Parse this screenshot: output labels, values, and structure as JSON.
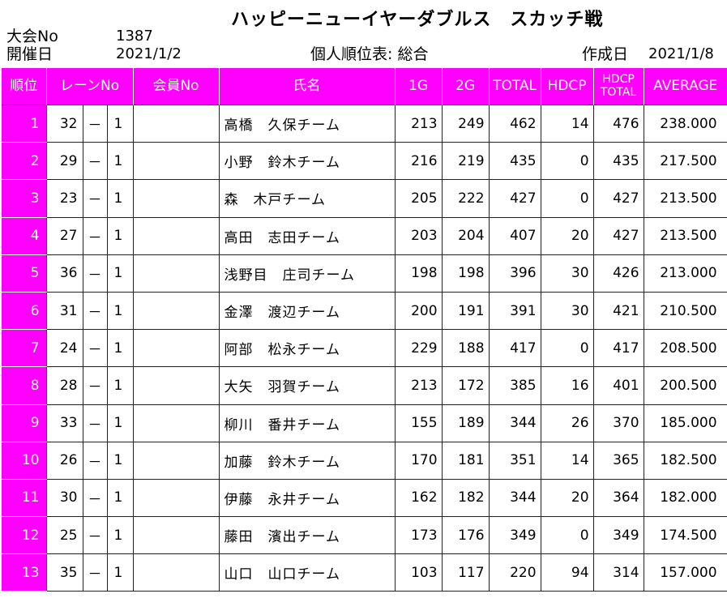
{
  "header": {
    "tournament_label": "大会No",
    "tournament_no": "1387",
    "date_label": "開催日",
    "date": "2021/1/2",
    "title": "ハッピーニューイヤーダブルス　スカッチ戦",
    "report_label": "個人順位表: 総合",
    "created_label": "作成日",
    "created_date": "2021/1/8"
  },
  "columns": {
    "rank": "順位",
    "lane": "レーンNo",
    "member": "会員No",
    "name": "氏名",
    "g1": "1G",
    "g2": "2G",
    "total": "TOTAL",
    "hdcp": "HDCP",
    "hdcp_total_1": "HDCP",
    "hdcp_total_2": "TOTAL",
    "average": "AVERAGE"
  },
  "rows": [
    {
      "rank": "1",
      "lane": "32",
      "dash": "－",
      "sub": "1",
      "member": "",
      "name": "高橋　久保チーム",
      "g1": "213",
      "g2": "249",
      "total": "462",
      "hdcp": "14",
      "hdcp_total": "476",
      "avg": "238.000"
    },
    {
      "rank": "2",
      "lane": "29",
      "dash": "－",
      "sub": "1",
      "member": "",
      "name": "小野　鈴木チーム",
      "g1": "216",
      "g2": "219",
      "total": "435",
      "hdcp": "0",
      "hdcp_total": "435",
      "avg": "217.500"
    },
    {
      "rank": "3",
      "lane": "23",
      "dash": "－",
      "sub": "1",
      "member": "",
      "name": "森　木戸チーム",
      "g1": "205",
      "g2": "222",
      "total": "427",
      "hdcp": "0",
      "hdcp_total": "427",
      "avg": "213.500"
    },
    {
      "rank": "4",
      "lane": "27",
      "dash": "－",
      "sub": "1",
      "member": "",
      "name": "高田　志田チーム",
      "g1": "203",
      "g2": "204",
      "total": "407",
      "hdcp": "20",
      "hdcp_total": "427",
      "avg": "213.500"
    },
    {
      "rank": "5",
      "lane": "36",
      "dash": "－",
      "sub": "1",
      "member": "",
      "name": "浅野目　庄司チーム",
      "g1": "198",
      "g2": "198",
      "total": "396",
      "hdcp": "30",
      "hdcp_total": "426",
      "avg": "213.000"
    },
    {
      "rank": "6",
      "lane": "31",
      "dash": "－",
      "sub": "1",
      "member": "",
      "name": "金澤　渡辺チーム",
      "g1": "200",
      "g2": "191",
      "total": "391",
      "hdcp": "30",
      "hdcp_total": "421",
      "avg": "210.500"
    },
    {
      "rank": "7",
      "lane": "24",
      "dash": "－",
      "sub": "1",
      "member": "",
      "name": "阿部　松永チーム",
      "g1": "229",
      "g2": "188",
      "total": "417",
      "hdcp": "0",
      "hdcp_total": "417",
      "avg": "208.500"
    },
    {
      "rank": "8",
      "lane": "28",
      "dash": "－",
      "sub": "1",
      "member": "",
      "name": "大矢　羽賀チーム",
      "g1": "213",
      "g2": "172",
      "total": "385",
      "hdcp": "16",
      "hdcp_total": "401",
      "avg": "200.500"
    },
    {
      "rank": "9",
      "lane": "33",
      "dash": "－",
      "sub": "1",
      "member": "",
      "name": "柳川　番井チーム",
      "g1": "155",
      "g2": "189",
      "total": "344",
      "hdcp": "26",
      "hdcp_total": "370",
      "avg": "185.000"
    },
    {
      "rank": "10",
      "lane": "26",
      "dash": "－",
      "sub": "1",
      "member": "",
      "name": "加藤　鈴木チーム",
      "g1": "170",
      "g2": "181",
      "total": "351",
      "hdcp": "14",
      "hdcp_total": "365",
      "avg": "182.500"
    },
    {
      "rank": "11",
      "lane": "30",
      "dash": "－",
      "sub": "1",
      "member": "",
      "name": "伊藤　永井チーム",
      "g1": "162",
      "g2": "182",
      "total": "344",
      "hdcp": "20",
      "hdcp_total": "364",
      "avg": "182.000"
    },
    {
      "rank": "12",
      "lane": "25",
      "dash": "－",
      "sub": "1",
      "member": "",
      "name": "藤田　濱出チーム",
      "g1": "173",
      "g2": "176",
      "total": "349",
      "hdcp": "0",
      "hdcp_total": "349",
      "avg": "174.500"
    },
    {
      "rank": "13",
      "lane": "35",
      "dash": "－",
      "sub": "1",
      "member": "",
      "name": "山口　山口チーム",
      "g1": "103",
      "g2": "117",
      "total": "220",
      "hdcp": "94",
      "hdcp_total": "314",
      "avg": "157.000"
    }
  ],
  "colors": {
    "header_bg": "#ff00ff",
    "header_text": "#ffffff",
    "grid": "#222222"
  }
}
